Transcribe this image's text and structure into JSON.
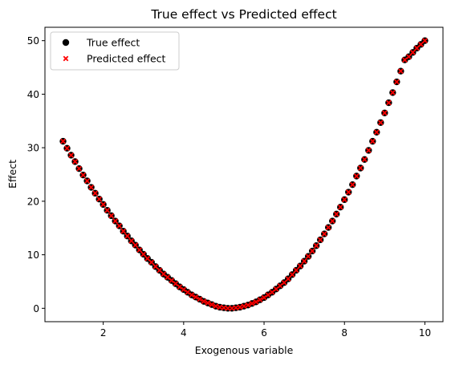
{
  "chart_data": {
    "type": "scatter",
    "title": "True effect vs Predicted effect",
    "xlabel": "Exogenous variable",
    "ylabel": "Effect",
    "xlim": [
      0.55,
      10.45
    ],
    "ylim": [
      -2.5,
      52.5
    ],
    "xticks": [
      2,
      4,
      6,
      8,
      10
    ],
    "yticks": [
      0,
      10,
      20,
      30,
      40,
      50
    ],
    "grid": false,
    "legend_position": "top-left",
    "series": [
      {
        "name": "True effect",
        "marker": "circle",
        "color": "#000000",
        "x": [
          1.0,
          1.1,
          1.2,
          1.3,
          1.4,
          1.5,
          1.6,
          1.7,
          1.8,
          1.9,
          2.0,
          2.1,
          2.2,
          2.3,
          2.4,
          2.5,
          2.6,
          2.7,
          2.8,
          2.9,
          3.0,
          3.1,
          3.2,
          3.3,
          3.4,
          3.5,
          3.6,
          3.7,
          3.8,
          3.9,
          4.0,
          4.1,
          4.2,
          4.3,
          4.4,
          4.5,
          4.6,
          4.7,
          4.8,
          4.9,
          5.0,
          5.1,
          5.2,
          5.3,
          5.4,
          5.5,
          5.6,
          5.7,
          5.8,
          5.9,
          6.0,
          6.1,
          6.2,
          6.3,
          6.4,
          6.5,
          6.6,
          6.7,
          6.8,
          6.9,
          7.0,
          7.1,
          7.2,
          7.3,
          7.4,
          7.5,
          7.6,
          7.7,
          7.8,
          7.9,
          8.0,
          8.1,
          8.2,
          8.3,
          8.4,
          8.5,
          8.6,
          8.7,
          8.8,
          8.9,
          9.0,
          9.1,
          9.2,
          9.3,
          9.4,
          9.5,
          9.6,
          9.7,
          9.8,
          9.9,
          10.0
        ],
        "y": [
          31.2,
          29.9,
          28.6,
          27.4,
          26.1,
          24.9,
          23.8,
          22.6,
          21.5,
          20.4,
          19.4,
          18.3,
          17.3,
          16.3,
          15.4,
          14.4,
          13.5,
          12.6,
          11.8,
          10.9,
          10.1,
          9.3,
          8.6,
          7.8,
          7.1,
          6.4,
          5.8,
          5.2,
          4.6,
          4.0,
          3.5,
          3.0,
          2.5,
          2.1,
          1.7,
          1.3,
          1.0,
          0.7,
          0.4,
          0.2,
          0.1,
          0.0,
          0.0,
          0.1,
          0.2,
          0.4,
          0.6,
          0.9,
          1.2,
          1.6,
          2.0,
          2.5,
          3.0,
          3.6,
          4.2,
          4.8,
          5.5,
          6.3,
          7.1,
          7.9,
          8.8,
          9.7,
          10.7,
          11.7,
          12.8,
          13.9,
          15.1,
          16.3,
          17.6,
          18.9,
          20.3,
          21.7,
          23.1,
          24.7,
          26.2,
          27.8,
          29.5,
          31.2,
          32.9,
          34.7,
          36.5,
          38.4,
          40.3,
          42.3,
          44.3,
          46.4,
          47.0,
          47.8,
          48.6,
          49.3,
          50.0
        ]
      },
      {
        "name": "Predicted effect",
        "marker": "x",
        "color": "#ff0000",
        "x": [
          1.0,
          1.1,
          1.2,
          1.3,
          1.4,
          1.5,
          1.6,
          1.7,
          1.8,
          1.9,
          2.0,
          2.1,
          2.2,
          2.3,
          2.4,
          2.5,
          2.6,
          2.7,
          2.8,
          2.9,
          3.0,
          3.1,
          3.2,
          3.3,
          3.4,
          3.5,
          3.6,
          3.7,
          3.8,
          3.9,
          4.0,
          4.1,
          4.2,
          4.3,
          4.4,
          4.5,
          4.6,
          4.7,
          4.8,
          4.9,
          5.0,
          5.1,
          5.2,
          5.3,
          5.4,
          5.5,
          5.6,
          5.7,
          5.8,
          5.9,
          6.0,
          6.1,
          6.2,
          6.3,
          6.4,
          6.5,
          6.6,
          6.7,
          6.8,
          6.9,
          7.0,
          7.1,
          7.2,
          7.3,
          7.4,
          7.5,
          7.6,
          7.7,
          7.8,
          7.9,
          8.0,
          8.1,
          8.2,
          8.3,
          8.4,
          8.5,
          8.6,
          8.7,
          8.8,
          8.9,
          9.0,
          9.1,
          9.2,
          9.3,
          9.4,
          9.5,
          9.6,
          9.7,
          9.8,
          9.9,
          10.0
        ],
        "y": [
          31.2,
          29.9,
          28.6,
          27.4,
          26.1,
          24.9,
          23.8,
          22.6,
          21.5,
          20.4,
          19.4,
          18.3,
          17.3,
          16.3,
          15.4,
          14.4,
          13.5,
          12.6,
          11.8,
          10.9,
          10.1,
          9.3,
          8.6,
          7.8,
          7.1,
          6.4,
          5.8,
          5.2,
          4.6,
          4.0,
          3.5,
          3.0,
          2.5,
          2.1,
          1.7,
          1.3,
          1.0,
          0.7,
          0.4,
          0.2,
          0.1,
          0.0,
          0.0,
          0.1,
          0.2,
          0.4,
          0.6,
          0.9,
          1.2,
          1.6,
          2.0,
          2.5,
          3.0,
          3.6,
          4.2,
          4.8,
          5.5,
          6.3,
          7.1,
          7.9,
          8.8,
          9.7,
          10.7,
          11.7,
          12.8,
          13.9,
          15.1,
          16.3,
          17.6,
          18.9,
          20.3,
          21.7,
          23.1,
          24.7,
          26.2,
          27.8,
          29.5,
          31.2,
          32.9,
          34.7,
          36.5,
          38.4,
          40.3,
          42.3,
          44.3,
          46.4,
          47.0,
          47.8,
          48.6,
          49.3,
          50.0
        ]
      }
    ]
  }
}
